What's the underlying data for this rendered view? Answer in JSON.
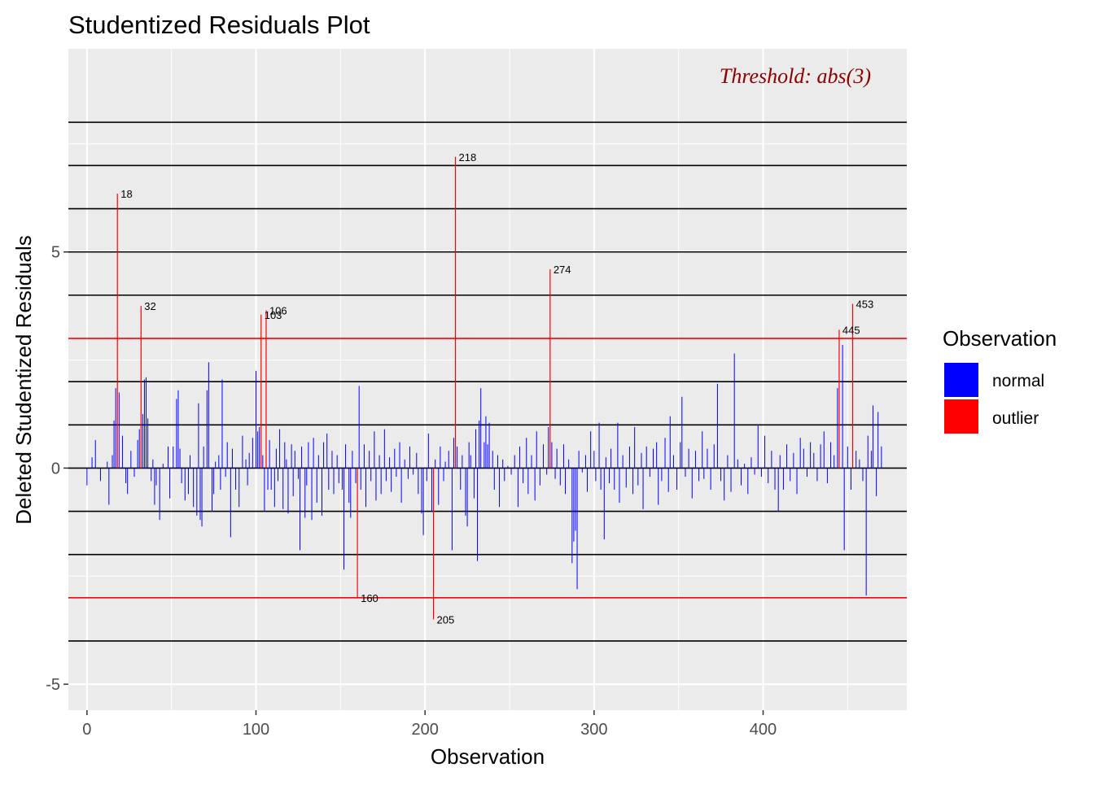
{
  "chart_data": {
    "type": "bar",
    "title": "Studentized Residuals Plot",
    "xlabel": "Observation",
    "ylabel": "Deleted Studentized Residuals",
    "xlim": [
      -11,
      485
    ],
    "ylim": [
      -5.6,
      9.7
    ],
    "x_ticks": [
      0,
      100,
      200,
      300,
      400
    ],
    "y_ticks": [
      -5,
      0,
      5
    ],
    "grid": true,
    "reference_lines": [
      -4,
      -2,
      -1,
      0,
      1,
      2,
      4,
      5,
      6,
      7,
      8
    ],
    "threshold": 3,
    "annotation": "Threshold: abs(3)",
    "legend": {
      "title": "Observation",
      "position": "right",
      "items": [
        {
          "label": "normal",
          "color": "#0000ff"
        },
        {
          "label": "outlier",
          "color": "#ff0000"
        }
      ]
    },
    "colors": {
      "normal": "#0000ff",
      "outlier": "#ff0000",
      "reference_line": "#000000",
      "threshold_line": "#ff0000",
      "annotation": "#8b0000",
      "panel": "#ebebeb",
      "grid": "#ffffff"
    },
    "outliers": [
      {
        "x": 18,
        "y": 6.35,
        "label": "18"
      },
      {
        "x": 32,
        "y": 3.75,
        "label": "32"
      },
      {
        "x": 103,
        "y": 3.55,
        "label": "103"
      },
      {
        "x": 106,
        "y": 3.65,
        "label": "106"
      },
      {
        "x": 160,
        "y": -3.0,
        "label": "160"
      },
      {
        "x": 205,
        "y": -3.5,
        "label": "205"
      },
      {
        "x": 218,
        "y": 7.2,
        "label": "218"
      },
      {
        "x": 274,
        "y": 4.6,
        "label": "274"
      },
      {
        "x": 445,
        "y": 3.2,
        "label": "445"
      },
      {
        "x": 453,
        "y": 3.8,
        "label": "453"
      }
    ],
    "normal_points": [
      {
        "x": 0,
        "y": -0.4
      },
      {
        "x": 3,
        "y": 0.25
      },
      {
        "x": 5,
        "y": 0.65
      },
      {
        "x": 8,
        "y": -0.3
      },
      {
        "x": 12,
        "y": 0.15
      },
      {
        "x": 13,
        "y": -0.85
      },
      {
        "x": 15,
        "y": 0.3
      },
      {
        "x": 16,
        "y": 1.1
      },
      {
        "x": 17,
        "y": 1.85
      },
      {
        "x": 19,
        "y": 1.75
      },
      {
        "x": 21,
        "y": 0.75
      },
      {
        "x": 23,
        "y": -0.35
      },
      {
        "x": 24,
        "y": -0.6
      },
      {
        "x": 26,
        "y": 0.4
      },
      {
        "x": 28,
        "y": -0.2
      },
      {
        "x": 30,
        "y": 0.65
      },
      {
        "x": 31,
        "y": 0.9
      },
      {
        "x": 33,
        "y": 1.25
      },
      {
        "x": 34,
        "y": 2.05
      },
      {
        "x": 35,
        "y": 2.1
      },
      {
        "x": 36,
        "y": 1.15
      },
      {
        "x": 38,
        "y": -0.3
      },
      {
        "x": 39,
        "y": 0.2
      },
      {
        "x": 40,
        "y": -0.85
      },
      {
        "x": 41,
        "y": -0.4
      },
      {
        "x": 43,
        "y": -1.2
      },
      {
        "x": 45,
        "y": 0.1
      },
      {
        "x": 48,
        "y": 0.5
      },
      {
        "x": 49,
        "y": -0.7
      },
      {
        "x": 51,
        "y": 0.5
      },
      {
        "x": 53,
        "y": 1.6
      },
      {
        "x": 54,
        "y": 1.8
      },
      {
        "x": 55,
        "y": 0.45
      },
      {
        "x": 56,
        "y": -0.35
      },
      {
        "x": 58,
        "y": -0.75
      },
      {
        "x": 60,
        "y": -0.6
      },
      {
        "x": 61,
        "y": 0.3
      },
      {
        "x": 63,
        "y": -0.9
      },
      {
        "x": 65,
        "y": -1.1
      },
      {
        "x": 66,
        "y": 1.5
      },
      {
        "x": 67,
        "y": -1.2
      },
      {
        "x": 68,
        "y": -1.35
      },
      {
        "x": 69,
        "y": 0.5
      },
      {
        "x": 71,
        "y": 1.8
      },
      {
        "x": 72,
        "y": 2.45
      },
      {
        "x": 74,
        "y": -1.0
      },
      {
        "x": 75,
        "y": -0.6
      },
      {
        "x": 76,
        "y": 0.15
      },
      {
        "x": 78,
        "y": 0.3
      },
      {
        "x": 79,
        "y": -0.5
      },
      {
        "x": 80,
        "y": 2.05
      },
      {
        "x": 82,
        "y": -0.2
      },
      {
        "x": 83,
        "y": 0.6
      },
      {
        "x": 85,
        "y": -1.6
      },
      {
        "x": 86,
        "y": 0.45
      },
      {
        "x": 88,
        "y": -0.5
      },
      {
        "x": 90,
        "y": -0.9
      },
      {
        "x": 92,
        "y": 0.75
      },
      {
        "x": 94,
        "y": 0.2
      },
      {
        "x": 95,
        "y": -0.4
      },
      {
        "x": 96,
        "y": 0.35
      },
      {
        "x": 98,
        "y": 0.7
      },
      {
        "x": 100,
        "y": 2.25
      },
      {
        "x": 101,
        "y": 0.85
      },
      {
        "x": 102,
        "y": 0.95
      },
      {
        "x": 104,
        "y": 0.3
      },
      {
        "x": 105,
        "y": -1.0
      },
      {
        "x": 107,
        "y": -0.5
      },
      {
        "x": 108,
        "y": 0.65
      },
      {
        "x": 109,
        "y": -0.5
      },
      {
        "x": 111,
        "y": -0.9
      },
      {
        "x": 112,
        "y": 0.45
      },
      {
        "x": 113,
        "y": -0.3
      },
      {
        "x": 114,
        "y": 0.9
      },
      {
        "x": 116,
        "y": -0.95
      },
      {
        "x": 117,
        "y": 0.6
      },
      {
        "x": 118,
        "y": 0.2
      },
      {
        "x": 119,
        "y": -1.05
      },
      {
        "x": 121,
        "y": 0.55
      },
      {
        "x": 122,
        "y": -0.65
      },
      {
        "x": 123,
        "y": 0.4
      },
      {
        "x": 125,
        "y": -0.25
      },
      {
        "x": 126,
        "y": -1.9
      },
      {
        "x": 127,
        "y": 0.5
      },
      {
        "x": 129,
        "y": -1.15
      },
      {
        "x": 130,
        "y": -0.4
      },
      {
        "x": 131,
        "y": 0.6
      },
      {
        "x": 133,
        "y": -1.2
      },
      {
        "x": 134,
        "y": 0.7
      },
      {
        "x": 136,
        "y": -0.8
      },
      {
        "x": 137,
        "y": 0.3
      },
      {
        "x": 139,
        "y": -1.1
      },
      {
        "x": 140,
        "y": 0.6
      },
      {
        "x": 142,
        "y": 0.8
      },
      {
        "x": 143,
        "y": -0.5
      },
      {
        "x": 145,
        "y": 0.4
      },
      {
        "x": 146,
        "y": -0.6
      },
      {
        "x": 148,
        "y": 0.3
      },
      {
        "x": 149,
        "y": -0.35
      },
      {
        "x": 151,
        "y": -0.5
      },
      {
        "x": 152,
        "y": -2.35
      },
      {
        "x": 153,
        "y": 0.55
      },
      {
        "x": 155,
        "y": -0.8
      },
      {
        "x": 156,
        "y": -1.15
      },
      {
        "x": 157,
        "y": 0.4
      },
      {
        "x": 159,
        "y": -0.35
      },
      {
        "x": 161,
        "y": 1.9
      },
      {
        "x": 162,
        "y": -0.5
      },
      {
        "x": 164,
        "y": 0.55
      },
      {
        "x": 165,
        "y": -0.9
      },
      {
        "x": 167,
        "y": 0.4
      },
      {
        "x": 168,
        "y": -0.3
      },
      {
        "x": 170,
        "y": 0.85
      },
      {
        "x": 171,
        "y": -0.75
      },
      {
        "x": 173,
        "y": 0.3
      },
      {
        "x": 174,
        "y": -0.6
      },
      {
        "x": 176,
        "y": 0.9
      },
      {
        "x": 177,
        "y": -0.3
      },
      {
        "x": 179,
        "y": 0.25
      },
      {
        "x": 180,
        "y": -0.55
      },
      {
        "x": 182,
        "y": 0.45
      },
      {
        "x": 183,
        "y": -0.2
      },
      {
        "x": 185,
        "y": 0.6
      },
      {
        "x": 186,
        "y": -0.8
      },
      {
        "x": 188,
        "y": 0.2
      },
      {
        "x": 190,
        "y": -0.25
      },
      {
        "x": 191,
        "y": 0.5
      },
      {
        "x": 193,
        "y": -0.15
      },
      {
        "x": 195,
        "y": 0.35
      },
      {
        "x": 196,
        "y": -0.6
      },
      {
        "x": 198,
        "y": -1.05
      },
      {
        "x": 199,
        "y": -1.55
      },
      {
        "x": 201,
        "y": -0.3
      },
      {
        "x": 202,
        "y": 0.8
      },
      {
        "x": 204,
        "y": -1.0
      },
      {
        "x": 206,
        "y": 0.2
      },
      {
        "x": 208,
        "y": -0.85
      },
      {
        "x": 209,
        "y": 0.5
      },
      {
        "x": 211,
        "y": -0.3
      },
      {
        "x": 212,
        "y": 0.15
      },
      {
        "x": 214,
        "y": 0.4
      },
      {
        "x": 216,
        "y": -1.9
      },
      {
        "x": 217,
        "y": 0.7
      },
      {
        "x": 219,
        "y": 0.5
      },
      {
        "x": 221,
        "y": -0.5
      },
      {
        "x": 222,
        "y": 0.3
      },
      {
        "x": 224,
        "y": -1.1
      },
      {
        "x": 225,
        "y": -1.35
      },
      {
        "x": 226,
        "y": 0.6
      },
      {
        "x": 227,
        "y": 0.3
      },
      {
        "x": 229,
        "y": -0.7
      },
      {
        "x": 230,
        "y": 0.9
      },
      {
        "x": 231,
        "y": -2.15
      },
      {
        "x": 232,
        "y": 1.1
      },
      {
        "x": 233,
        "y": 1.85
      },
      {
        "x": 235,
        "y": 0.6
      },
      {
        "x": 236,
        "y": 1.2
      },
      {
        "x": 237,
        "y": 0.55
      },
      {
        "x": 238,
        "y": 1.05
      },
      {
        "x": 240,
        "y": 0.4
      },
      {
        "x": 241,
        "y": -0.5
      },
      {
        "x": 243,
        "y": 0.3
      },
      {
        "x": 244,
        "y": -0.9
      },
      {
        "x": 246,
        "y": 0.2
      },
      {
        "x": 247,
        "y": -0.3
      },
      {
        "x": 249,
        "y": 0.05
      },
      {
        "x": 251,
        "y": -0.15
      },
      {
        "x": 253,
        "y": 0.3
      },
      {
        "x": 255,
        "y": -0.9
      },
      {
        "x": 256,
        "y": 0.5
      },
      {
        "x": 258,
        "y": -0.35
      },
      {
        "x": 260,
        "y": 0.7
      },
      {
        "x": 261,
        "y": -0.6
      },
      {
        "x": 263,
        "y": 0.3
      },
      {
        "x": 265,
        "y": -0.75
      },
      {
        "x": 266,
        "y": 0.85
      },
      {
        "x": 268,
        "y": -0.4
      },
      {
        "x": 270,
        "y": 0.55
      },
      {
        "x": 272,
        "y": -0.15
      },
      {
        "x": 273,
        "y": 0.95
      },
      {
        "x": 275,
        "y": 0.6
      },
      {
        "x": 277,
        "y": -0.25
      },
      {
        "x": 278,
        "y": 0.45
      },
      {
        "x": 280,
        "y": -0.4
      },
      {
        "x": 282,
        "y": 0.55
      },
      {
        "x": 283,
        "y": -0.6
      },
      {
        "x": 285,
        "y": 0.2
      },
      {
        "x": 287,
        "y": -2.2
      },
      {
        "x": 288,
        "y": -1.7
      },
      {
        "x": 289,
        "y": -1.45
      },
      {
        "x": 290,
        "y": -2.8
      },
      {
        "x": 291,
        "y": 0.4
      },
      {
        "x": 293,
        "y": -0.1
      },
      {
        "x": 295,
        "y": 0.3
      },
      {
        "x": 296,
        "y": -0.55
      },
      {
        "x": 298,
        "y": 0.85
      },
      {
        "x": 300,
        "y": 0.4
      },
      {
        "x": 301,
        "y": -0.3
      },
      {
        "x": 303,
        "y": 1.05
      },
      {
        "x": 304,
        "y": -0.5
      },
      {
        "x": 306,
        "y": -1.65
      },
      {
        "x": 307,
        "y": 0.25
      },
      {
        "x": 309,
        "y": -0.35
      },
      {
        "x": 310,
        "y": 0.45
      },
      {
        "x": 312,
        "y": -0.5
      },
      {
        "x": 314,
        "y": 1.05
      },
      {
        "x": 315,
        "y": -0.8
      },
      {
        "x": 317,
        "y": 0.3
      },
      {
        "x": 319,
        "y": -0.45
      },
      {
        "x": 321,
        "y": 0.5
      },
      {
        "x": 323,
        "y": -0.6
      },
      {
        "x": 324,
        "y": 0.95
      },
      {
        "x": 326,
        "y": -0.4
      },
      {
        "x": 328,
        "y": 0.35
      },
      {
        "x": 329,
        "y": -0.95
      },
      {
        "x": 331,
        "y": 0.5
      },
      {
        "x": 333,
        "y": -0.2
      },
      {
        "x": 335,
        "y": 0.45
      },
      {
        "x": 337,
        "y": 0.6
      },
      {
        "x": 338,
        "y": -0.85
      },
      {
        "x": 340,
        "y": -0.3
      },
      {
        "x": 342,
        "y": 0.7
      },
      {
        "x": 344,
        "y": -0.55
      },
      {
        "x": 345,
        "y": 1.2
      },
      {
        "x": 347,
        "y": 0.3
      },
      {
        "x": 349,
        "y": -0.5
      },
      {
        "x": 351,
        "y": 0.6
      },
      {
        "x": 352,
        "y": 1.65
      },
      {
        "x": 354,
        "y": -0.2
      },
      {
        "x": 356,
        "y": 0.45
      },
      {
        "x": 358,
        "y": -0.7
      },
      {
        "x": 360,
        "y": 0.4
      },
      {
        "x": 362,
        "y": -0.3
      },
      {
        "x": 364,
        "y": 0.85
      },
      {
        "x": 365,
        "y": -0.25
      },
      {
        "x": 367,
        "y": 0.45
      },
      {
        "x": 369,
        "y": -0.5
      },
      {
        "x": 371,
        "y": 0.55
      },
      {
        "x": 373,
        "y": 1.95
      },
      {
        "x": 375,
        "y": -0.3
      },
      {
        "x": 377,
        "y": -0.75
      },
      {
        "x": 379,
        "y": 0.3
      },
      {
        "x": 381,
        "y": -0.55
      },
      {
        "x": 383,
        "y": 2.65
      },
      {
        "x": 385,
        "y": 0.2
      },
      {
        "x": 387,
        "y": -0.4
      },
      {
        "x": 389,
        "y": 0.1
      },
      {
        "x": 391,
        "y": -0.6
      },
      {
        "x": 393,
        "y": 0.25
      },
      {
        "x": 395,
        "y": -0.15
      },
      {
        "x": 397,
        "y": 1.0
      },
      {
        "x": 399,
        "y": -0.2
      },
      {
        "x": 401,
        "y": 0.75
      },
      {
        "x": 403,
        "y": -0.35
      },
      {
        "x": 405,
        "y": 0.4
      },
      {
        "x": 407,
        "y": -0.5
      },
      {
        "x": 409,
        "y": -1.0
      },
      {
        "x": 410,
        "y": 0.3
      },
      {
        "x": 412,
        "y": -0.5
      },
      {
        "x": 414,
        "y": 0.55
      },
      {
        "x": 416,
        "y": -0.3
      },
      {
        "x": 418,
        "y": 0.35
      },
      {
        "x": 420,
        "y": -0.6
      },
      {
        "x": 422,
        "y": 0.7
      },
      {
        "x": 424,
        "y": 0.45
      },
      {
        "x": 426,
        "y": -0.2
      },
      {
        "x": 428,
        "y": 0.6
      },
      {
        "x": 430,
        "y": 0.35
      },
      {
        "x": 432,
        "y": -0.3
      },
      {
        "x": 434,
        "y": 0.55
      },
      {
        "x": 436,
        "y": 0.85
      },
      {
        "x": 438,
        "y": -0.35
      },
      {
        "x": 440,
        "y": 0.6
      },
      {
        "x": 442,
        "y": 0.3
      },
      {
        "x": 444,
        "y": 1.85
      },
      {
        "x": 447,
        "y": 2.85
      },
      {
        "x": 448,
        "y": -1.9
      },
      {
        "x": 450,
        "y": 0.5
      },
      {
        "x": 452,
        "y": -0.5
      },
      {
        "x": 455,
        "y": 0.4
      },
      {
        "x": 457,
        "y": 0.2
      },
      {
        "x": 459,
        "y": -0.3
      },
      {
        "x": 461,
        "y": -2.95
      },
      {
        "x": 462,
        "y": 0.75
      },
      {
        "x": 464,
        "y": 0.4
      },
      {
        "x": 465,
        "y": 1.45
      },
      {
        "x": 467,
        "y": -0.65
      },
      {
        "x": 468,
        "y": 1.3
      },
      {
        "x": 470,
        "y": 0.5
      }
    ]
  }
}
